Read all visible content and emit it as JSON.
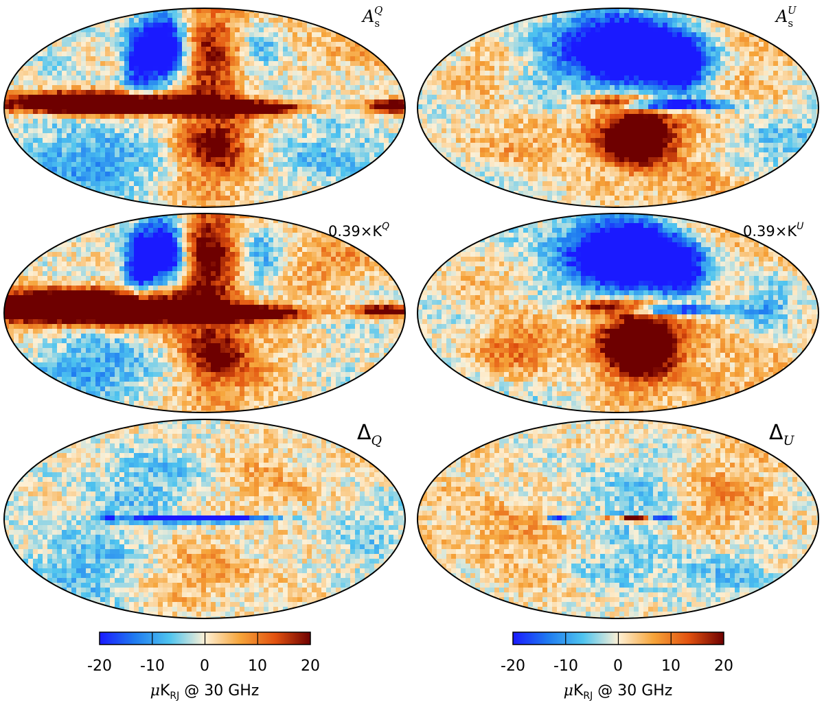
{
  "colormap": {
    "stops": [
      "#1a1aff",
      "#1f7bf0",
      "#4fc4ef",
      "#fdf0d5",
      "#f6a43a",
      "#e2520f",
      "#6e0000"
    ]
  },
  "panels": [
    {
      "id": "AsQ",
      "label_main": "A",
      "label_sub": "s",
      "label_sup": "Q",
      "pattern": "sQ"
    },
    {
      "id": "AsU",
      "label_main": "A",
      "label_sub": "s",
      "label_sup": "U",
      "pattern": "sU"
    },
    {
      "id": "KQ",
      "label_prefix": "0.39×K",
      "label_sup": "Q",
      "pattern": "KQ"
    },
    {
      "id": "KU",
      "label_prefix": "0.39×K",
      "label_sup": "U",
      "pattern": "KU"
    },
    {
      "id": "dQ",
      "label_main": "Δ",
      "label_sub": "Q",
      "pattern": "dQ"
    },
    {
      "id": "dU",
      "label_main": "Δ",
      "label_sub": "U",
      "pattern": "dU"
    }
  ],
  "colorbars": [
    {
      "id": "left",
      "tick_labels": [
        "-20",
        "-10",
        "0",
        "10",
        "20"
      ],
      "unit_mu": "μ",
      "unit_k": "K",
      "unit_sub": "RJ",
      "unit_rest": " @ 30 GHz"
    },
    {
      "id": "right",
      "tick_labels": [
        "-20",
        "-10",
        "0",
        "10",
        "20"
      ],
      "unit_mu": "μ",
      "unit_k": "K",
      "unit_sub": "RJ",
      "unit_rest": " @ 30 GHz"
    }
  ]
}
